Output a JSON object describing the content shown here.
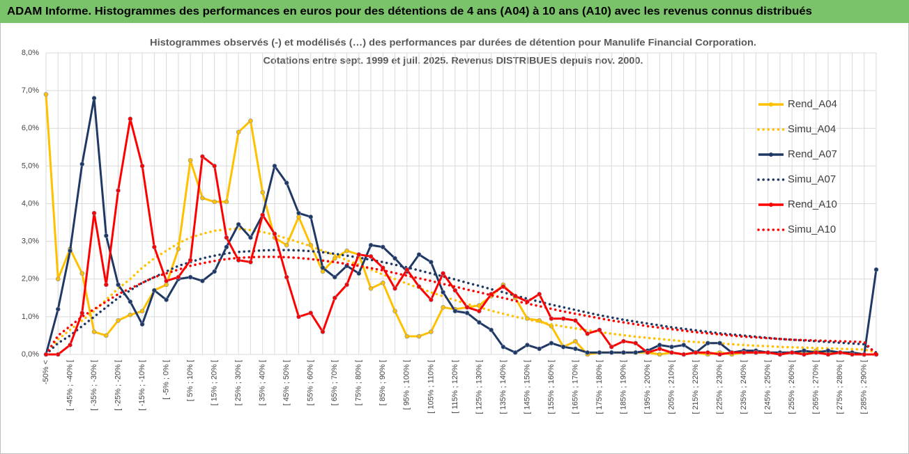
{
  "header": {
    "title": "ADAM Informe. Histogrammes des performances en euros pour des détentions de 4 ans (A04) à 10 ans (A10) avec les revenus connus distribués"
  },
  "chart_data": {
    "type": "line",
    "title": "Histogrammes observés (-) et modélisés (…)  des performances par durées de détention pour Manulife Financial Corporation.",
    "subtitle": "Cotations entre sept. 1999 et juil. 2025. Revenus DISTRIBUES depuis nov. 2000.",
    "categories": [
      "-50% <",
      null,
      "[ -45% ; -40% [",
      null,
      "[ -35% ; -30% [",
      null,
      "[ -25% ; -20% [",
      null,
      "[ -15% ; -10% [",
      null,
      "[ -5% ; 0% [",
      null,
      "[ 5% ; 10% [",
      null,
      "[ 15% ; 20% [",
      null,
      "[ 25% ; 30% [",
      null,
      "[ 35% ; 40% [",
      null,
      "[ 45% ; 50% [",
      null,
      "[ 55% ; 60% [",
      null,
      "[ 65% ; 70% [",
      null,
      "[ 75% ; 80% [",
      null,
      "[ 85% ; 90% [",
      null,
      "[ 95% ; 100% [",
      null,
      "[ 105% ; 110% [",
      null,
      "[ 115% ; 120% [",
      null,
      "[ 125% ; 130% [",
      null,
      "[ 135% ; 140% [",
      null,
      "[ 145% ; 150% [",
      null,
      "[ 155% ; 160% [",
      null,
      "[ 165% ; 170% [",
      null,
      "[ 175% ; 180% [",
      null,
      "[ 185% ; 190% [",
      null,
      "[ 195% ; 200% [",
      null,
      "[ 205% ; 210% [",
      null,
      "[ 215% ; 220% [",
      null,
      "[ 225% ; 230% [",
      null,
      "[ 235% ; 240% [",
      null,
      "[ 245% ; 250% [",
      null,
      "[ 255% ; 260% [",
      null,
      "[ 265% ; 270% [",
      null,
      "[ 275% ; 280% [",
      null,
      "[ 285% ; 290% [",
      null
    ],
    "series": [
      {
        "name": "Rend_A04",
        "color": "#ffc000",
        "style": "solid",
        "markers": true,
        "values": [
          6.9,
          2.0,
          2.8,
          2.15,
          0.6,
          0.5,
          0.9,
          1.05,
          1.15,
          1.7,
          1.85,
          2.8,
          5.15,
          4.15,
          4.05,
          4.05,
          5.9,
          6.2,
          4.3,
          3.1,
          2.9,
          3.65,
          2.9,
          2.2,
          2.55,
          2.75,
          2.65,
          1.75,
          1.9,
          1.15,
          0.48,
          0.48,
          0.6,
          1.25,
          1.2,
          1.25,
          1.3,
          1.55,
          1.85,
          1.5,
          0.95,
          0.9,
          0.75,
          0.2,
          0.35,
          0,
          0.05,
          0.05,
          0.05,
          0.05,
          0.05,
          0,
          0.05,
          0,
          0.05,
          0,
          0.05,
          0,
          0.05,
          0.05,
          0.05,
          0,
          0.05,
          0.05,
          0.1,
          0.05,
          0.05,
          0.05,
          0,
          0
        ]
      },
      {
        "name": "Simu_A04",
        "color": "#ffc000",
        "style": "dotted",
        "markers": false,
        "values": [
          0,
          0.4,
          0.65,
          0.9,
          1.15,
          1.45,
          1.75,
          2.0,
          2.3,
          2.55,
          2.75,
          2.95,
          3.1,
          3.2,
          3.28,
          3.32,
          3.33,
          3.3,
          3.25,
          3.17,
          3.08,
          2.98,
          2.87,
          2.75,
          2.63,
          2.5,
          2.38,
          2.25,
          2.12,
          2.0,
          1.88,
          1.76,
          1.65,
          1.54,
          1.44,
          1.34,
          1.25,
          1.16,
          1.08,
          1.0,
          0.93,
          0.86,
          0.8,
          0.74,
          0.69,
          0.64,
          0.59,
          0.55,
          0.51,
          0.47,
          0.44,
          0.41,
          0.38,
          0.35,
          0.33,
          0.31,
          0.29,
          0.27,
          0.25,
          0.23,
          0.22,
          0.2,
          0.19,
          0.18,
          0.17,
          0.16,
          0.15,
          0.14,
          0.13,
          0.05
        ]
      },
      {
        "name": "Rend_A07",
        "color": "#1f3864",
        "style": "solid",
        "markers": true,
        "values": [
          0,
          1.2,
          2.75,
          5.05,
          6.8,
          3.15,
          1.85,
          1.4,
          0.8,
          1.7,
          1.45,
          2.0,
          2.05,
          1.95,
          2.2,
          2.85,
          3.45,
          3.1,
          3.7,
          5.0,
          4.55,
          3.75,
          3.65,
          2.3,
          2.05,
          2.35,
          2.15,
          2.9,
          2.85,
          2.55,
          2.2,
          2.65,
          2.45,
          1.65,
          1.15,
          1.1,
          0.85,
          0.65,
          0.2,
          0.05,
          0.25,
          0.15,
          0.3,
          0.2,
          0.15,
          0.05,
          0.05,
          0.05,
          0.05,
          0.05,
          0.1,
          0.25,
          0.2,
          0.25,
          0.05,
          0.3,
          0.3,
          0.05,
          0.1,
          0.1,
          0.05,
          0.05,
          0.05,
          0.1,
          0.05,
          0.1,
          0.05,
          0.05,
          0,
          2.25
        ]
      },
      {
        "name": "Simu_A07",
        "color": "#1f3864",
        "style": "dotted",
        "markers": false,
        "values": [
          0,
          0.3,
          0.5,
          0.75,
          1.0,
          1.25,
          1.5,
          1.7,
          1.9,
          2.05,
          2.2,
          2.35,
          2.45,
          2.55,
          2.62,
          2.68,
          2.72,
          2.74,
          2.76,
          2.77,
          2.77,
          2.76,
          2.74,
          2.71,
          2.67,
          2.62,
          2.57,
          2.51,
          2.45,
          2.38,
          2.31,
          2.23,
          2.15,
          2.07,
          1.99,
          1.9,
          1.82,
          1.73,
          1.65,
          1.56,
          1.48,
          1.4,
          1.32,
          1.25,
          1.18,
          1.11,
          1.04,
          0.98,
          0.92,
          0.87,
          0.82,
          0.77,
          0.72,
          0.68,
          0.64,
          0.6,
          0.56,
          0.53,
          0.5,
          0.47,
          0.44,
          0.41,
          0.39,
          0.37,
          0.35,
          0.33,
          0.31,
          0.29,
          0.27,
          0.05
        ]
      },
      {
        "name": "Rend_A10",
        "color": "#ff0000",
        "style": "solid",
        "markers": true,
        "values": [
          0,
          0,
          0.25,
          1.1,
          3.75,
          1.85,
          4.35,
          6.25,
          5.0,
          2.85,
          1.95,
          2.05,
          2.5,
          5.25,
          5.0,
          3.1,
          2.5,
          2.45,
          3.7,
          3.2,
          2.05,
          1.0,
          1.1,
          0.6,
          1.5,
          1.85,
          2.65,
          2.6,
          2.3,
          1.75,
          2.25,
          1.8,
          1.45,
          2.15,
          1.7,
          1.25,
          1.15,
          1.6,
          1.8,
          1.55,
          1.4,
          1.6,
          0.95,
          0.95,
          0.9,
          0.55,
          0.65,
          0.2,
          0.35,
          0.3,
          0.05,
          0.15,
          0.05,
          0,
          0.05,
          0.05,
          0,
          0.05,
          0.05,
          0.05,
          0.05,
          0,
          0.05,
          0,
          0.05,
          0,
          0.05,
          0,
          0,
          0
        ]
      },
      {
        "name": "Simu_A10",
        "color": "#ff0000",
        "style": "dotted",
        "markers": false,
        "values": [
          0,
          0.5,
          0.75,
          1.0,
          1.2,
          1.4,
          1.6,
          1.75,
          1.9,
          2.05,
          2.15,
          2.25,
          2.35,
          2.42,
          2.48,
          2.53,
          2.56,
          2.58,
          2.59,
          2.59,
          2.58,
          2.56,
          2.53,
          2.49,
          2.45,
          2.4,
          2.35,
          2.29,
          2.23,
          2.16,
          2.09,
          2.02,
          1.95,
          1.87,
          1.8,
          1.72,
          1.65,
          1.57,
          1.5,
          1.42,
          1.35,
          1.28,
          1.21,
          1.14,
          1.08,
          1.02,
          0.96,
          0.9,
          0.85,
          0.8,
          0.75,
          0.71,
          0.67,
          0.63,
          0.59,
          0.56,
          0.53,
          0.5,
          0.47,
          0.45,
          0.43,
          0.41,
          0.39,
          0.38,
          0.37,
          0.36,
          0.35,
          0.34,
          0.33,
          0
        ]
      }
    ],
    "ylim": [
      0,
      8
    ],
    "yticks": [
      {
        "value": 0,
        "label": "0,0%"
      },
      {
        "value": 1,
        "label": "1,0%"
      },
      {
        "value": 2,
        "label": "2,0%"
      },
      {
        "value": 3,
        "label": "3,0%"
      },
      {
        "value": 4,
        "label": "4,0%"
      },
      {
        "value": 5,
        "label": "5,0%"
      },
      {
        "value": 6,
        "label": "6,0%"
      },
      {
        "value": 7,
        "label": "7,0%"
      },
      {
        "value": 8,
        "label": "8,0%"
      }
    ],
    "grid": true,
    "legend": "right"
  }
}
